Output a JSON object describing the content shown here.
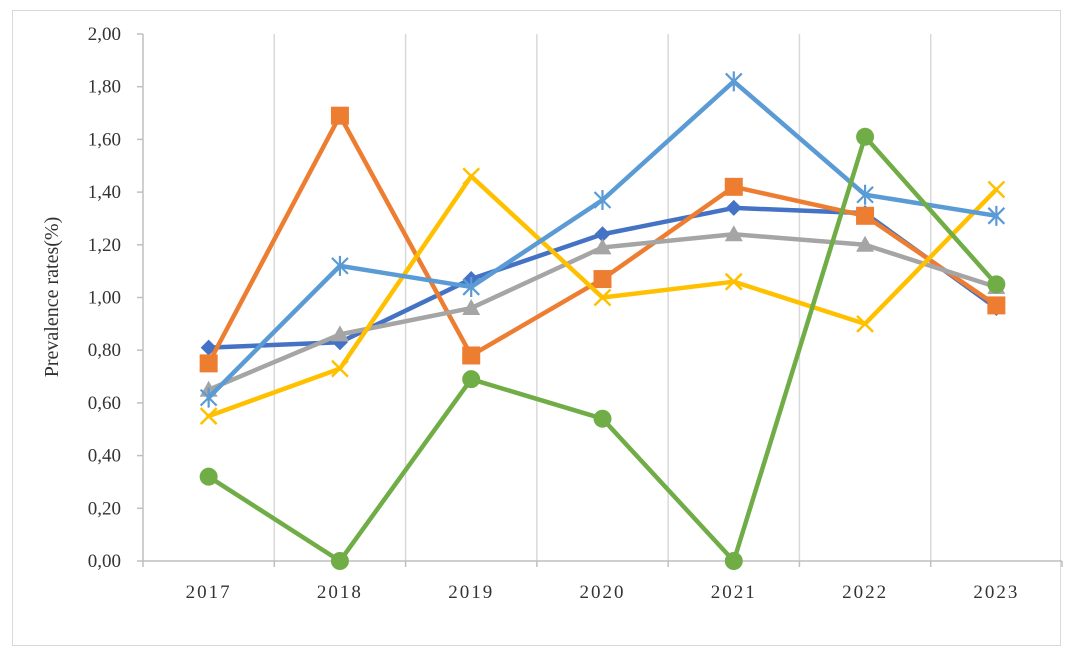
{
  "chart_data": {
    "type": "line",
    "title": "",
    "xlabel": "",
    "ylabel": "Prevalence rates(%)",
    "categories": [
      "2017",
      "2018",
      "2019",
      "2020",
      "2021",
      "2022",
      "2023"
    ],
    "ylim": [
      0,
      2
    ],
    "ytick_labels": [
      "0,00",
      "0,20",
      "0,40",
      "0,60",
      "0,80",
      "1,00",
      "1,20",
      "1,40",
      "1,60",
      "1,80",
      "2,00"
    ],
    "grid": "vertical",
    "legend": "none",
    "series": [
      {
        "color": "#4472C4",
        "marker": "diamond",
        "values": [
          0.81,
          0.83,
          1.07,
          1.24,
          1.34,
          1.32,
          0.96
        ]
      },
      {
        "color": "#ED7D31",
        "marker": "square",
        "values": [
          0.75,
          1.69,
          0.78,
          1.07,
          1.42,
          1.31,
          0.97
        ]
      },
      {
        "color": "#A5A5A5",
        "marker": "triangle",
        "values": [
          0.65,
          0.86,
          0.96,
          1.19,
          1.24,
          1.2,
          1.04
        ]
      },
      {
        "color": "#FFC000",
        "marker": "x",
        "values": [
          0.55,
          0.73,
          1.46,
          1.0,
          1.06,
          0.9,
          1.41
        ]
      },
      {
        "color": "#5B9BD5",
        "marker": "star",
        "values": [
          0.62,
          1.12,
          1.04,
          1.37,
          1.82,
          1.39,
          1.31
        ]
      },
      {
        "color": "#70AD47",
        "marker": "circle",
        "values": [
          0.32,
          0.0,
          0.69,
          0.54,
          0.0,
          1.61,
          1.05
        ]
      }
    ]
  }
}
